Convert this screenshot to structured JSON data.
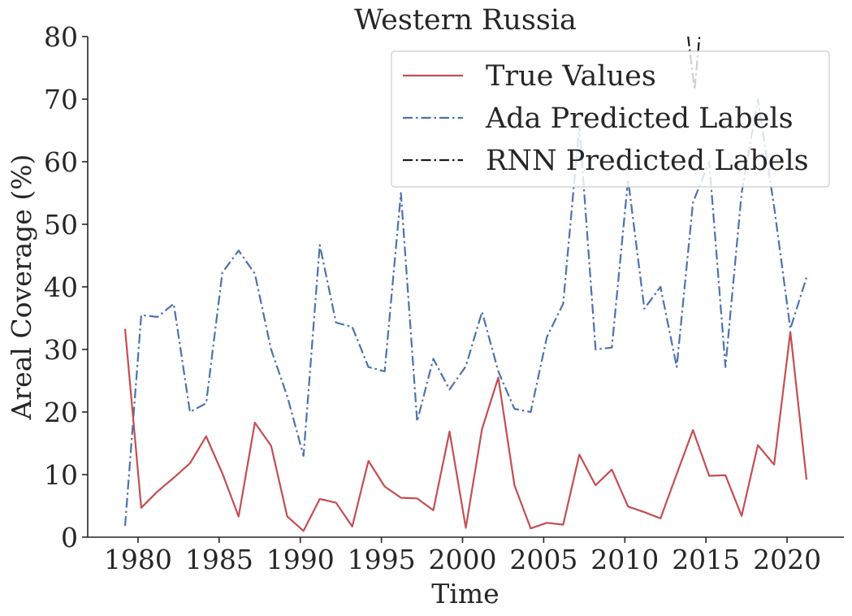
{
  "chart_data": {
    "type": "line",
    "title": "Western Russia",
    "xlabel": "Time",
    "ylabel": "Areal Coverage (%)",
    "xlim": [
      1976.9,
      2023.5
    ],
    "ylim": [
      0,
      80
    ],
    "xticks": [
      1980,
      1985,
      1990,
      1995,
      2000,
      2005,
      2010,
      2015,
      2020
    ],
    "yticks": [
      0,
      10,
      20,
      30,
      40,
      50,
      60,
      70,
      80
    ],
    "grid": false,
    "legend_position": "top-right",
    "x": [
      1979.2,
      1980.2,
      1981.2,
      1982.2,
      1983.2,
      1984.2,
      1985.2,
      1986.2,
      1987.2,
      1988.2,
      1989.2,
      1990.2,
      1991.2,
      1992.2,
      1993.2,
      1994.2,
      1995.2,
      1996.2,
      1997.2,
      1998.2,
      1999.2,
      2000.2,
      2001.2,
      2002.2,
      2003.2,
      2004.2,
      2005.2,
      2006.2,
      2007.2,
      2008.2,
      2009.2,
      2010.2,
      2011.2,
      2012.2,
      2013.2,
      2014.2,
      2015.2,
      2016.2,
      2017.2,
      2018.2,
      2019.2,
      2020.2,
      2021.2
    ],
    "series": [
      {
        "name": "True Values",
        "color": "#c44e52",
        "style": "solid",
        "values": [
          33.3,
          4.7,
          7.3,
          9.5,
          11.8,
          16.1,
          10.2,
          3.3,
          18.3,
          14.6,
          3.3,
          1.0,
          6.1,
          5.5,
          1.7,
          12.2,
          8.1,
          6.3,
          6.2,
          4.3,
          16.9,
          1.5,
          17.3,
          25.5,
          8.3,
          1.4,
          2.3,
          2.0,
          13.2,
          8.3,
          10.8,
          4.9,
          4.0,
          3.0,
          10.1,
          17.1,
          9.8,
          9.9,
          3.4,
          14.7,
          11.6,
          32.8,
          9.2
        ]
      },
      {
        "name": "Ada Predicted Labels",
        "color": "#4c72b0",
        "style": "dashdot",
        "values": [
          1.8,
          35.5,
          35.2,
          37.3,
          20.0,
          21.4,
          42.3,
          45.8,
          42.1,
          30.0,
          22.5,
          13.0,
          46.7,
          34.3,
          33.6,
          27.2,
          26.5,
          55.0,
          18.5,
          28.5,
          23.6,
          27.3,
          36.0,
          26.5,
          20.5,
          20.0,
          32.0,
          37.3,
          65.8,
          30.0,
          30.3,
          57.2,
          36.5,
          40.0,
          27.2,
          53.5,
          60.0,
          27.2,
          55.0,
          70.0,
          52.8,
          33.3,
          41.5
        ]
      },
      {
        "name": "RNN Predicted Labels",
        "color": "#1a1a1a",
        "style": "dashdot",
        "values_shown": [
          [
            2013.9,
            80.0
          ],
          [
            2014.3,
            71.5
          ],
          [
            2014.6,
            80.0
          ]
        ]
      }
    ]
  }
}
